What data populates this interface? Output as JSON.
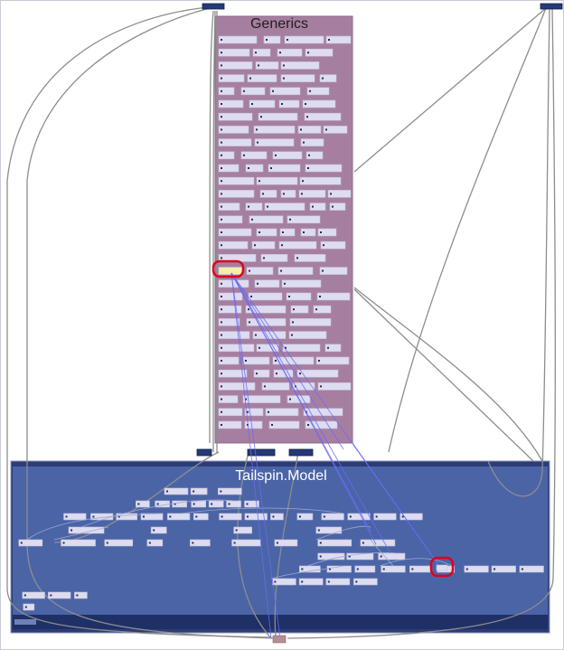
{
  "groups": {
    "generics": {
      "title": "Generics",
      "fill": "#a67fa0",
      "border": "#8e6a89"
    },
    "model": {
      "title": "Tailspin.Model",
      "fill": "#4a64a6",
      "border": "#1e2f66"
    }
  },
  "colors": {
    "node_fill": "#dedcf0",
    "node_border": "#c3c0de",
    "node_dot": "#2a2a55",
    "edge": "#8d8d8d",
    "highlight_edge": "#6b6bf2",
    "selected_node": "#f3efad",
    "highlight_ring": "#e0001b",
    "external_node": "#243a78",
    "target_node": "#b38e96"
  },
  "icons": {
    "node_marker": "dot-icon",
    "highlight": "red-ring-icon"
  }
}
